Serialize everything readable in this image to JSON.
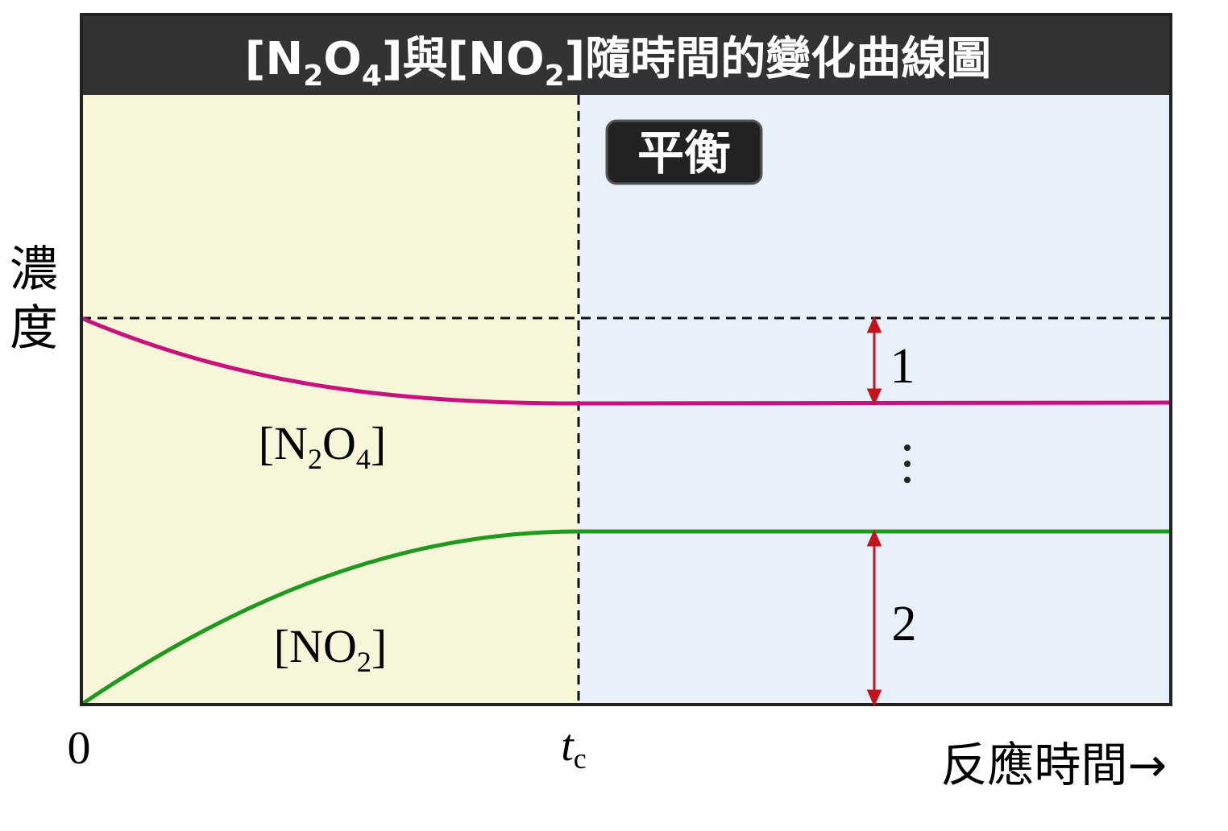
{
  "header": {
    "title_parts": [
      "[N",
      "2",
      "O",
      "4",
      "]與[NO",
      "2",
      "]隨時間的變化曲線圖"
    ]
  },
  "badge": "平衡",
  "y_axis_label": [
    "濃",
    "度"
  ],
  "x_axis": {
    "origin": "0",
    "tc": {
      "main": "t",
      "sub": "c"
    },
    "label": "反應時間→"
  },
  "curves": {
    "n2o4": [
      "[N",
      "2",
      "O",
      "4",
      "]"
    ],
    "no2": [
      "[NO",
      "2",
      "]"
    ]
  },
  "ratio": {
    "top": "1",
    "bottom": "2"
  }
}
